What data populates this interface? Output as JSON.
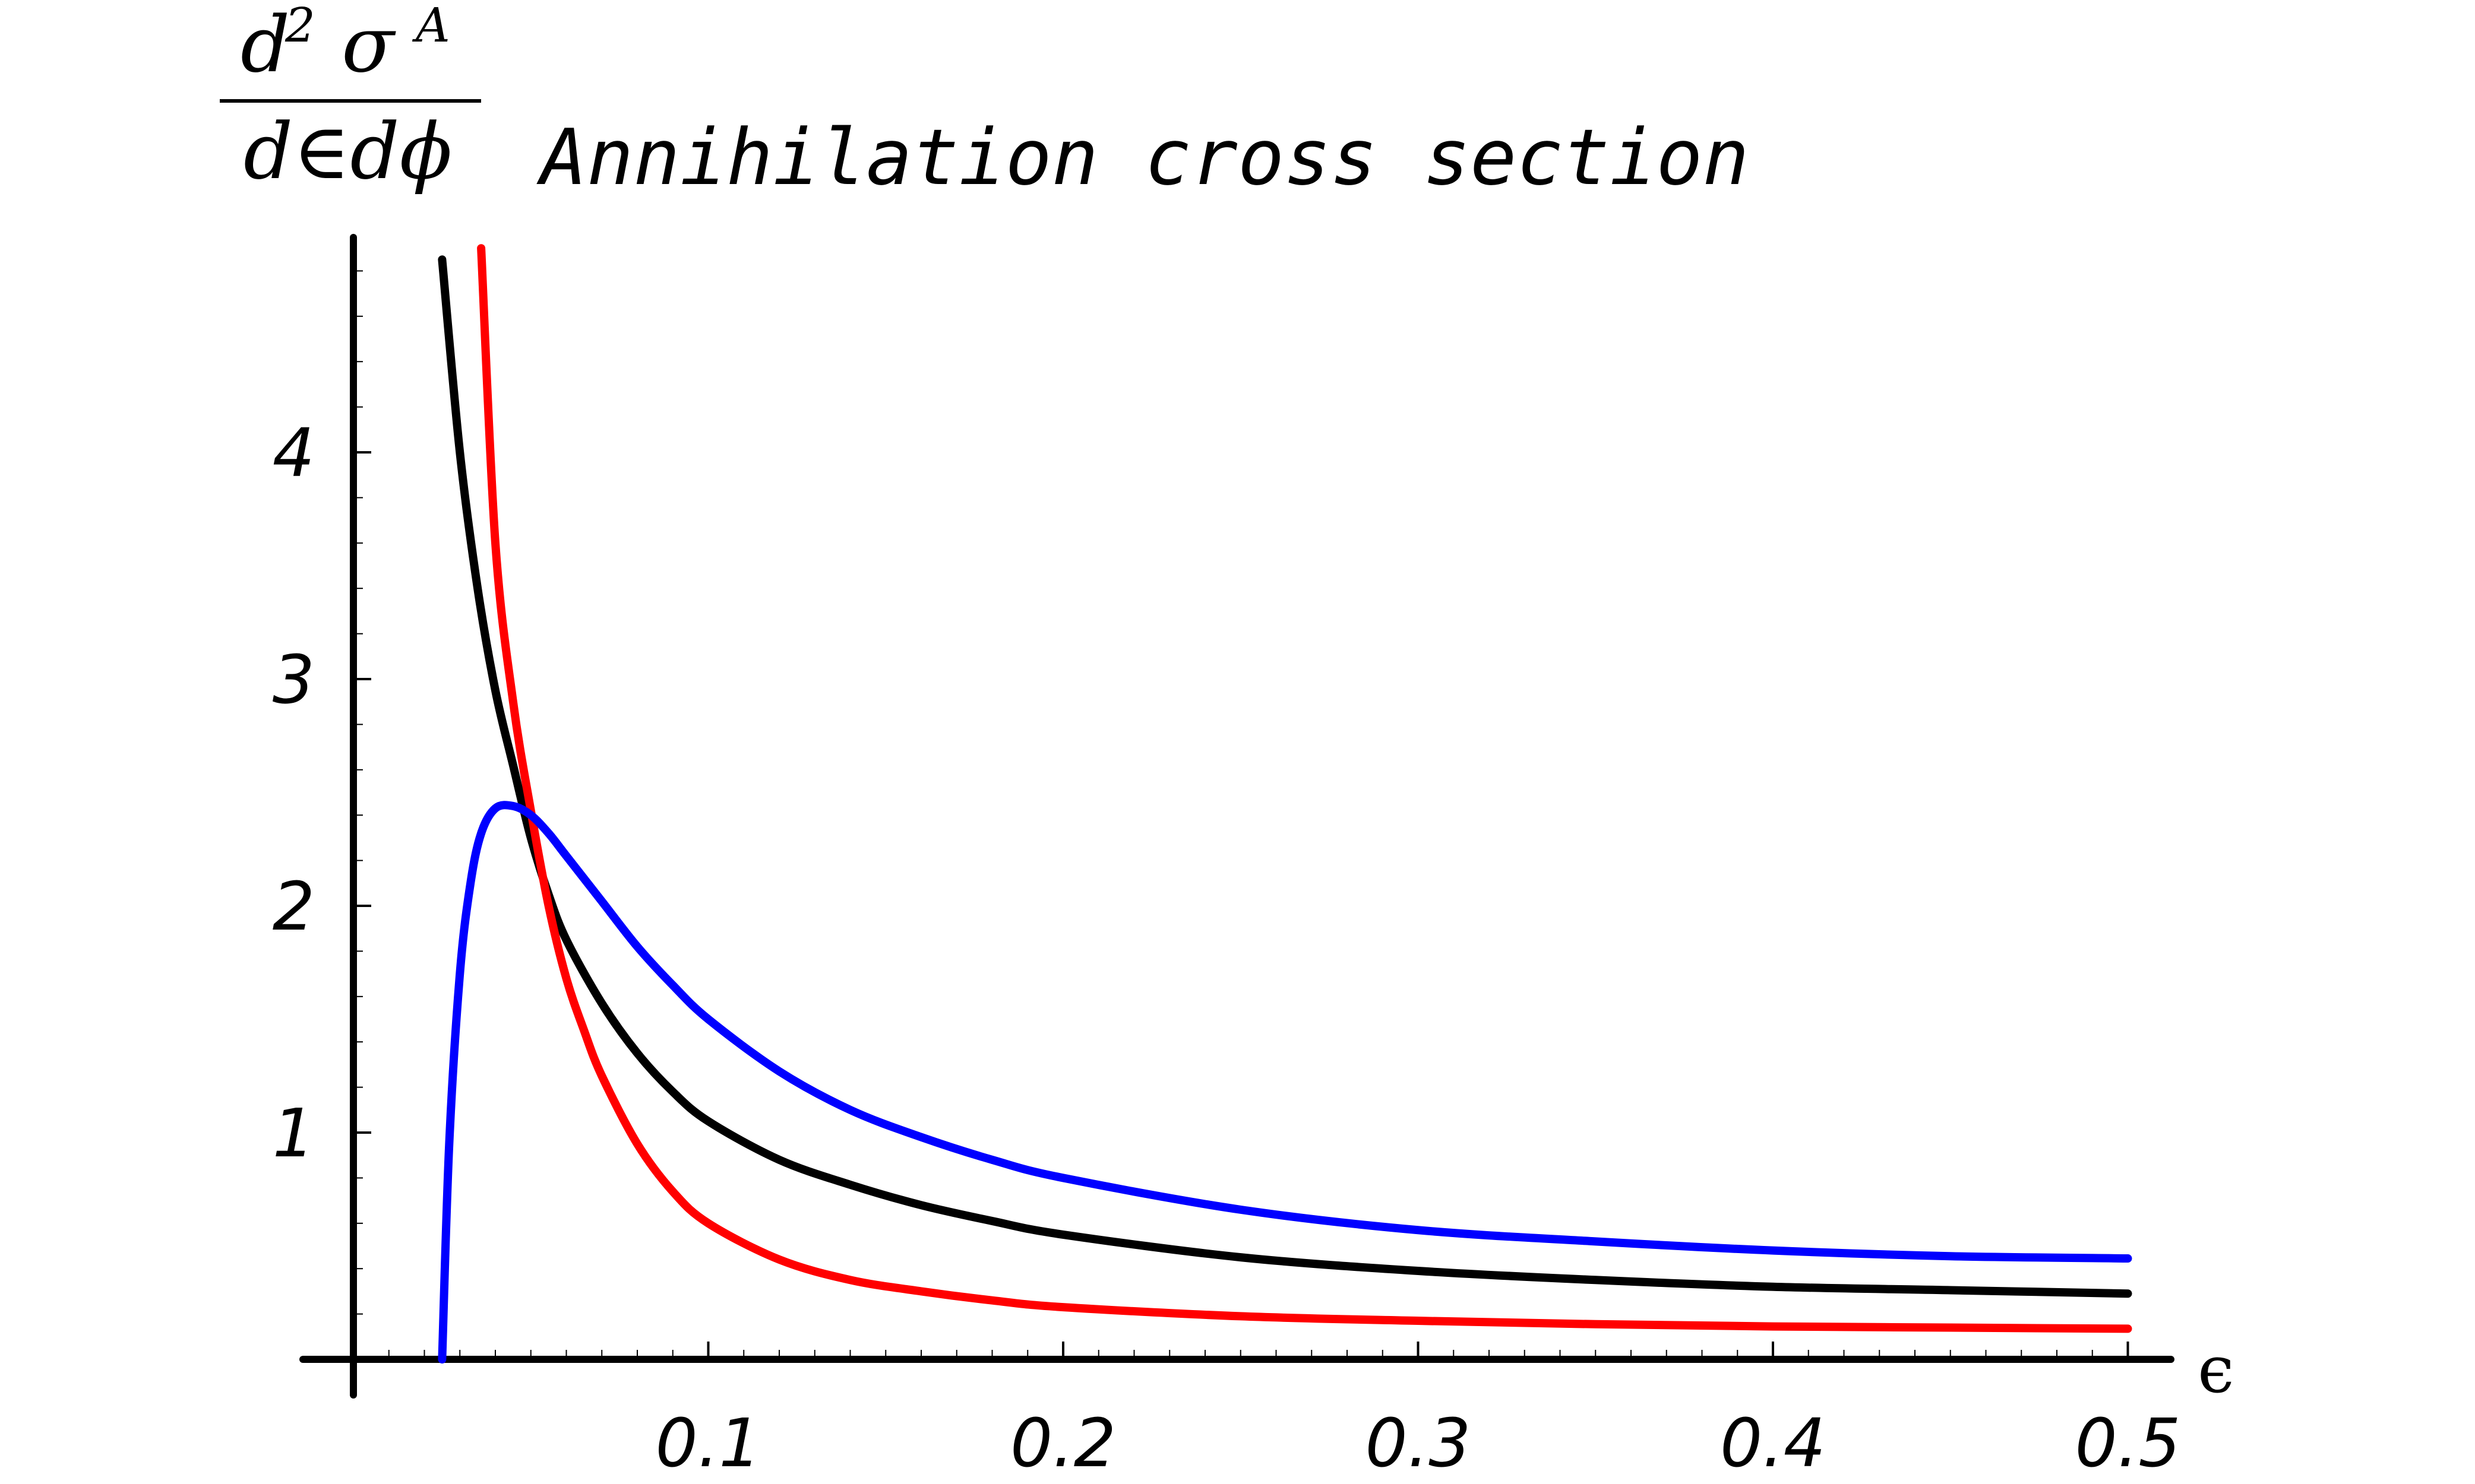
{
  "chart_data": {
    "type": "line",
    "title": "Annihilation cross section",
    "xlabel": "ϵ",
    "ylabel": {
      "numerator_d": "d",
      "numerator_exp": "2",
      "numerator_sigma": "σ",
      "numerator_sup": "A",
      "denominator": "d∈dϕ"
    },
    "xlim": [
      0,
      0.5
    ],
    "ylim": [
      0,
      4.9
    ],
    "x_ticks": [
      "0.1",
      "0.2",
      "0.3",
      "0.4",
      "0.5"
    ],
    "y_ticks": [
      "1",
      "2",
      "3",
      "4"
    ],
    "grid": false,
    "series": [
      {
        "color": "#000000",
        "x": [
          0.025,
          0.03,
          0.035,
          0.04,
          0.045,
          0.05,
          0.055,
          0.06,
          0.07,
          0.08,
          0.09,
          0.1,
          0.12,
          0.14,
          0.16,
          0.18,
          0.2,
          0.25,
          0.3,
          0.35,
          0.4,
          0.45,
          0.5
        ],
        "y": [
          4.85,
          4.0,
          3.4,
          2.95,
          2.62,
          2.3,
          2.05,
          1.85,
          1.57,
          1.35,
          1.18,
          1.05,
          0.88,
          0.77,
          0.68,
          0.61,
          0.55,
          0.45,
          0.39,
          0.35,
          0.32,
          0.305,
          0.29
        ]
      },
      {
        "color": "#ff0000",
        "x": [
          0.036,
          0.04,
          0.045,
          0.05,
          0.055,
          0.06,
          0.065,
          0.07,
          0.08,
          0.09,
          0.1,
          0.12,
          0.14,
          0.16,
          0.18,
          0.2,
          0.25,
          0.3,
          0.35,
          0.4,
          0.45,
          0.5
        ],
        "y": [
          4.9,
          3.6,
          2.9,
          2.42,
          2.0,
          1.68,
          1.45,
          1.25,
          0.95,
          0.74,
          0.6,
          0.44,
          0.35,
          0.3,
          0.26,
          0.23,
          0.19,
          0.17,
          0.155,
          0.145,
          0.14,
          0.135
        ]
      },
      {
        "color": "#0000ff",
        "x": [
          0.025,
          0.027,
          0.03,
          0.033,
          0.036,
          0.04,
          0.045,
          0.05,
          0.055,
          0.06,
          0.07,
          0.08,
          0.09,
          0.1,
          0.12,
          0.14,
          0.16,
          0.18,
          0.2,
          0.25,
          0.3,
          0.35,
          0.4,
          0.45,
          0.5
        ],
        "y": [
          0.0,
          0.95,
          1.7,
          2.1,
          2.32,
          2.43,
          2.44,
          2.4,
          2.32,
          2.22,
          2.02,
          1.82,
          1.65,
          1.5,
          1.27,
          1.1,
          0.98,
          0.88,
          0.8,
          0.66,
          0.57,
          0.52,
          0.48,
          0.455,
          0.445
        ]
      }
    ]
  }
}
